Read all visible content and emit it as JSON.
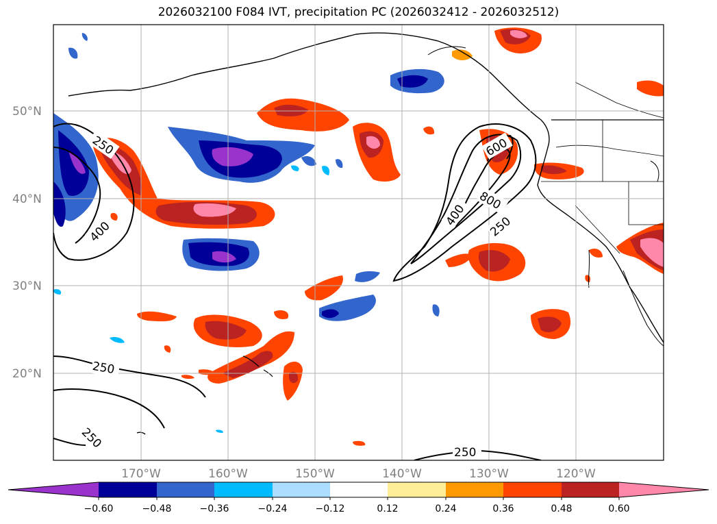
{
  "title": "2026032100 F084 IVT, precipitation PC (2026032412 - 2026032512)",
  "map": {
    "lat_labels": [
      "50°N",
      "40°N",
      "30°N",
      "20°N"
    ],
    "lon_labels": [
      "170°W",
      "160°W",
      "150°W",
      "140°W",
      "130°W",
      "120°W"
    ],
    "contour_labels": [
      "250",
      "400",
      "600",
      "800",
      "400",
      "250",
      "250",
      "250",
      "250"
    ],
    "gridlines": true
  },
  "colorbar": {
    "tick_labels": [
      "−0.60",
      "−0.48",
      "−0.36",
      "−0.24",
      "−0.12",
      "0.12",
      "0.24",
      "0.36",
      "0.48",
      "0.60"
    ],
    "colors": [
      "#9933cc",
      "#000099",
      "#3366cc",
      "#00bbff",
      "#aaddff",
      "#ffffff",
      "#ffee99",
      "#ff9900",
      "#ff4400",
      "#bb2222",
      "#ff88aa"
    ]
  }
}
